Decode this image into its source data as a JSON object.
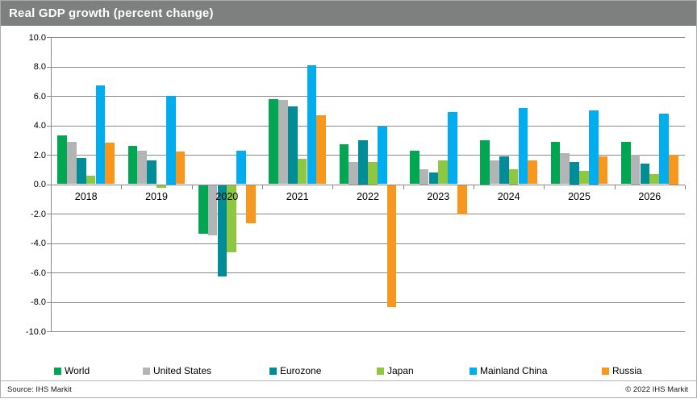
{
  "title": "Real GDP growth (percent change)",
  "footer": {
    "source": "Source: IHS Markit",
    "copyright": "© 2022  IHS Markit"
  },
  "ui_colors": {
    "title_bar_background": "#7d807e",
    "title_text": "#ffffff",
    "gridline": "#8a8a8a",
    "frame_border": "#ababab"
  },
  "chart_data": {
    "type": "bar",
    "title": "Real GDP growth (percent change)",
    "xlabel": "",
    "ylabel": "",
    "ylim": [
      -10,
      10
    ],
    "ytick_step": 2,
    "ytick_labels": [
      "10.0",
      "8.0",
      "6.0",
      "4.0",
      "2.0",
      "0.0",
      "-2.0",
      "-4.0",
      "-6.0",
      "-8.0",
      "-10.0"
    ],
    "grid": true,
    "legend_position": "bottom",
    "categories": [
      "2018",
      "2019",
      "2020",
      "2021",
      "2022",
      "2023",
      "2024",
      "2025",
      "2026"
    ],
    "series": [
      {
        "name": "World",
        "color": "#00A651",
        "values": [
          3.3,
          2.6,
          -3.3,
          5.8,
          2.7,
          2.3,
          3.0,
          2.9,
          2.9
        ]
      },
      {
        "name": "United States",
        "color": "#B2B4B6",
        "values": [
          2.9,
          2.3,
          -3.4,
          5.7,
          1.5,
          1.0,
          1.6,
          2.1,
          2.0
        ]
      },
      {
        "name": "Eurozone",
        "color": "#008D97",
        "values": [
          1.8,
          1.6,
          -6.2,
          5.3,
          3.0,
          0.8,
          1.9,
          1.5,
          1.4
        ]
      },
      {
        "name": "Japan",
        "color": "#8FC740",
        "values": [
          0.6,
          -0.2,
          -4.6,
          1.7,
          1.5,
          1.6,
          1.0,
          0.9,
          0.7
        ]
      },
      {
        "name": "Mainland China",
        "color": "#00AEEF",
        "values": [
          6.7,
          6.0,
          2.3,
          8.1,
          3.9,
          4.9,
          5.2,
          5.0,
          4.8
        ]
      },
      {
        "name": "Russia",
        "color": "#F8971D",
        "values": [
          2.8,
          2.2,
          -2.6,
          4.7,
          -8.3,
          -2.0,
          1.6,
          1.9,
          2.0
        ]
      }
    ]
  }
}
